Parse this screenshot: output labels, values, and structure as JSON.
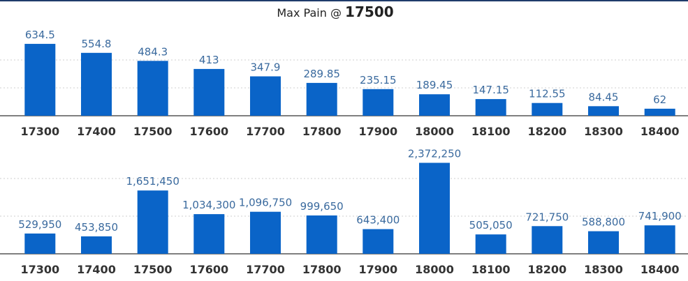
{
  "title": {
    "prefix": "Max Pain @ ",
    "value": "17500"
  },
  "colors": {
    "bar": "#0a64c8",
    "label": "#3a6a9e",
    "axis": "#555555"
  },
  "chart_data": [
    {
      "type": "bar",
      "categories": [
        "17300",
        "17400",
        "17500",
        "17600",
        "17700",
        "17800",
        "17900",
        "18000",
        "18100",
        "18200",
        "18300",
        "18400"
      ],
      "values": [
        634.5,
        554.8,
        484.3,
        413,
        347.9,
        289.85,
        235.15,
        189.45,
        147.15,
        112.55,
        84.45,
        62
      ],
      "labels": [
        "634.5",
        "554.8",
        "484.3",
        "413",
        "347.9",
        "289.85",
        "235.15",
        "189.45",
        "147.15",
        "112.55",
        "84.45",
        "62"
      ],
      "ylim": [
        0,
        640
      ],
      "grid": true
    },
    {
      "type": "bar",
      "categories": [
        "17300",
        "17400",
        "17500",
        "17600",
        "17700",
        "17800",
        "17900",
        "18000",
        "18100",
        "18200",
        "18300",
        "18400"
      ],
      "values": [
        529950,
        453850,
        1651450,
        1034300,
        1096750,
        999650,
        643400,
        2372250,
        505050,
        721750,
        588800,
        741900
      ],
      "labels": [
        "529,950",
        "453,850",
        "1,651,450",
        "1,034,300",
        "1,096,750",
        "999,650",
        "643,400",
        "2,372,250",
        "505,050",
        "721,750",
        "588,800",
        "741,900"
      ],
      "ylim": [
        0,
        2400000
      ],
      "grid": true
    }
  ]
}
